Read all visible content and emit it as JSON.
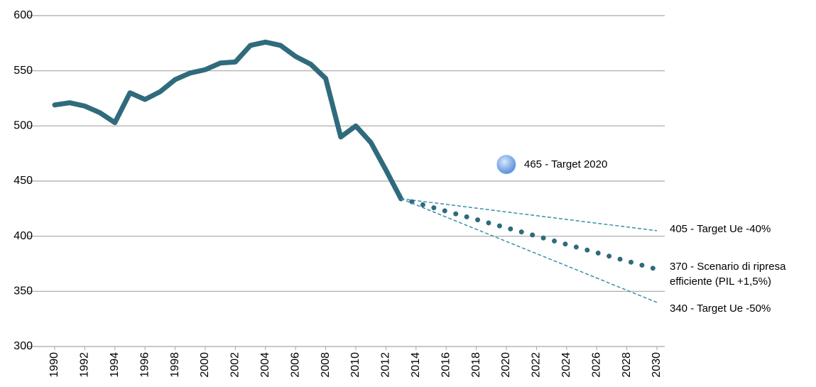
{
  "chart_data": {
    "type": "line",
    "xlim": [
      1990,
      2030
    ],
    "xticks": [
      1990,
      1992,
      1994,
      1996,
      1998,
      2000,
      2002,
      2004,
      2006,
      2008,
      2010,
      2012,
      2014,
      2016,
      2018,
      2020,
      2022,
      2024,
      2026,
      2028,
      2030
    ],
    "ylim": [
      300,
      600
    ],
    "yticks": [
      300,
      350,
      400,
      450,
      500,
      550,
      600
    ],
    "grid": true,
    "series": [
      {
        "color": "#2f6b7c",
        "style": "solid",
        "x": [
          1990,
          1991,
          1992,
          1993,
          1994,
          1995,
          1996,
          1997,
          1998,
          1999,
          2000,
          2001,
          2002,
          2003,
          2004,
          2005,
          2006,
          2007,
          2008,
          2009,
          2010,
          2011,
          2012,
          2013
        ],
        "values": [
          519,
          521,
          518,
          512,
          503,
          530,
          524,
          531,
          542,
          548,
          551,
          557,
          558,
          573,
          576,
          573,
          563,
          556,
          543,
          490,
          500,
          485,
          460,
          434
        ]
      },
      {
        "name": "405 - Target Ue -40%",
        "color": "#3a8fa6",
        "style": "dashed",
        "x": [
          2013,
          2030
        ],
        "values": [
          434,
          405
        ]
      },
      {
        "name": "370 - Scenario di ripresa efficiente (PIL +1,5%)",
        "color": "#2f6b7c",
        "style": "dotted",
        "x": [
          2013,
          2030
        ],
        "values": [
          434,
          370
        ]
      },
      {
        "name": "340 - Target Ue -50%",
        "color": "#3a8fa6",
        "style": "dashed",
        "x": [
          2013,
          2030
        ],
        "values": [
          434,
          340
        ]
      }
    ],
    "points": [
      {
        "name": "465 - Target 2020",
        "x": 2020,
        "y": 465,
        "color": "#7fb2ec"
      }
    ]
  }
}
